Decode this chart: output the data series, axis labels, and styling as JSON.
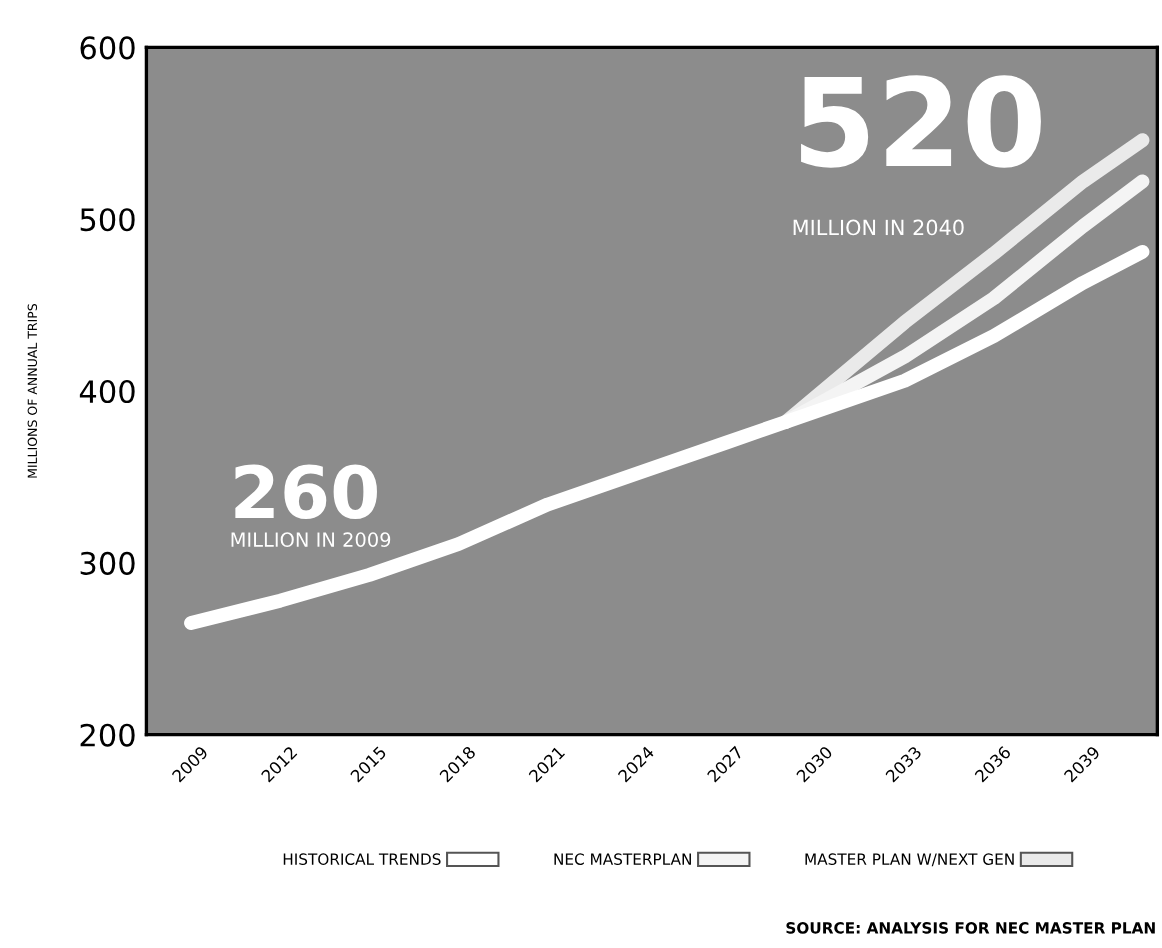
{
  "chart_data": {
    "type": "line",
    "ylabel": "MILLIONS OF ANNUAL TRIPS",
    "xlim": [
      2007.5,
      2041.5
    ],
    "ylim": [
      200,
      600
    ],
    "xticks": [
      2009,
      2012,
      2015,
      2018,
      2021,
      2024,
      2027,
      2030,
      2033,
      2036,
      2039
    ],
    "yticks": [
      200,
      300,
      400,
      500,
      600
    ],
    "grid": false,
    "legend": "bottom",
    "marker": "none",
    "line_style": "solid",
    "series": [
      {
        "name": "HISTORICAL TRENDS",
        "color": "#ffffff",
        "x": [
          2009,
          2012,
          2015,
          2018,
          2021,
          2024,
          2027,
          2029,
          2033,
          2036,
          2039,
          2041
        ],
        "values": [
          265,
          278,
          293,
          311,
          334,
          352,
          370,
          382,
          406,
          432,
          463,
          481
        ]
      },
      {
        "name": "NEC MASTERPLAN",
        "color": "#f4f4f4",
        "x": [
          2029,
          2033,
          2036,
          2039,
          2041
        ],
        "values": [
          382,
          420,
          454,
          496,
          522
        ]
      },
      {
        "name": "MASTER PLAN W/NEXT GEN",
        "color": "#eaeaea",
        "x": [
          2029,
          2033,
          2036,
          2039,
          2041
        ],
        "values": [
          382,
          440,
          480,
          522,
          546
        ]
      }
    ],
    "annotations": [
      "520",
      "MILLION IN 2040",
      "260",
      "MILLION IN 2009",
      "SOURCE: ANALYSIS FOR NEC MASTER PLAN"
    ]
  }
}
